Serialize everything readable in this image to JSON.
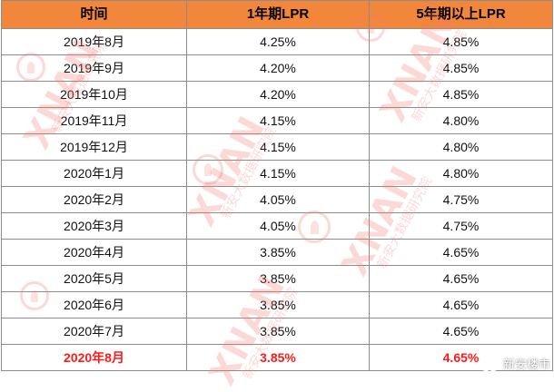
{
  "table": {
    "headers": [
      "时间",
      "1年期LPR",
      "5年期以上LPR"
    ],
    "rows": [
      [
        "2019年8月",
        "4.25%",
        "4.85%"
      ],
      [
        "2019年9月",
        "4.20%",
        "4.85%"
      ],
      [
        "2019年10月",
        "4.20%",
        "4.85%"
      ],
      [
        "2019年11月",
        "4.15%",
        "4.80%"
      ],
      [
        "2019年12月",
        "4.15%",
        "4.80%"
      ],
      [
        "2020年1月",
        "4.15%",
        "4.80%"
      ],
      [
        "2020年2月",
        "4.05%",
        "4.75%"
      ],
      [
        "2020年3月",
        "4.05%",
        "4.75%"
      ],
      [
        "2020年4月",
        "3.85%",
        "4.65%"
      ],
      [
        "2020年5月",
        "3.85%",
        "4.65%"
      ],
      [
        "2020年6月",
        "3.85%",
        "4.65%"
      ],
      [
        "2020年7月",
        "3.85%",
        "4.65%"
      ],
      [
        "2020年8月",
        "3.85%",
        "4.65%"
      ]
    ],
    "highlight_row_index": 12
  },
  "watermark": {
    "brand": "XNAN",
    "subtitle": "新安大数据研究院"
  },
  "badge": {
    "label": "新安楼市",
    "icon": "wechat-icon"
  },
  "colors": {
    "header_bg": "#f2873b",
    "highlight_text": "#ff1a1a",
    "grid_line": "#8c8c8c"
  }
}
